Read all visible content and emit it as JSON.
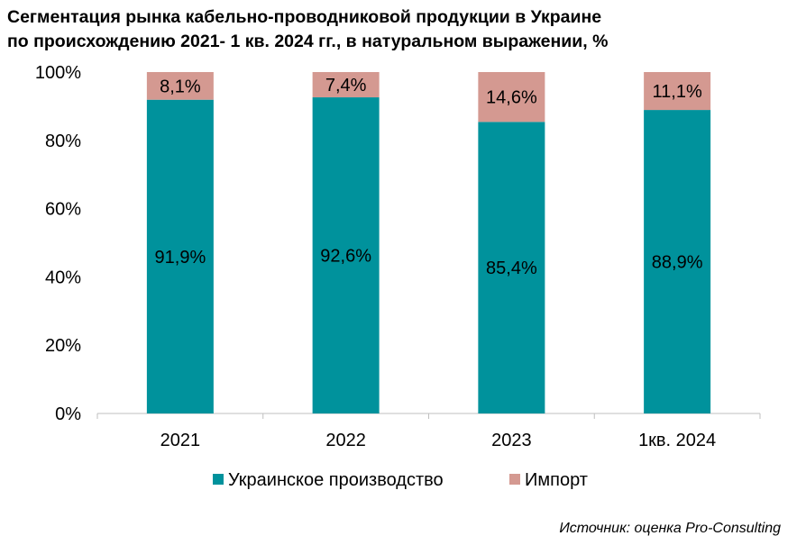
{
  "chart_data": {
    "type": "bar",
    "stacked": true,
    "title": [
      "Сегментация рынка кабельно-проводниковой продукции в Украине",
      "по происхождению 2021- 1 кв. 2024 гг., в натуральном выражении, %"
    ],
    "categories": [
      "2021",
      "2022",
      "2023",
      "1кв. 2024"
    ],
    "series": [
      {
        "name": "Украинское производство",
        "values": [
          91.9,
          92.6,
          85.4,
          88.9
        ],
        "labels": [
          "91,9%",
          "92,6%",
          "85,4%",
          "88,9%"
        ],
        "color": "#00929c"
      },
      {
        "name": "Импорт",
        "values": [
          8.1,
          7.4,
          14.6,
          11.1
        ],
        "labels": [
          "8,1%",
          "7,4%",
          "14,6%",
          "11,1%"
        ],
        "color": "#d49991"
      }
    ],
    "y_ticks": [
      "0%",
      "20%",
      "40%",
      "60%",
      "80%",
      "100%"
    ],
    "ylim": [
      0,
      100
    ],
    "grid": false,
    "legend_position": "bottom"
  },
  "source": "Источник: оценка Pro-Consulting"
}
